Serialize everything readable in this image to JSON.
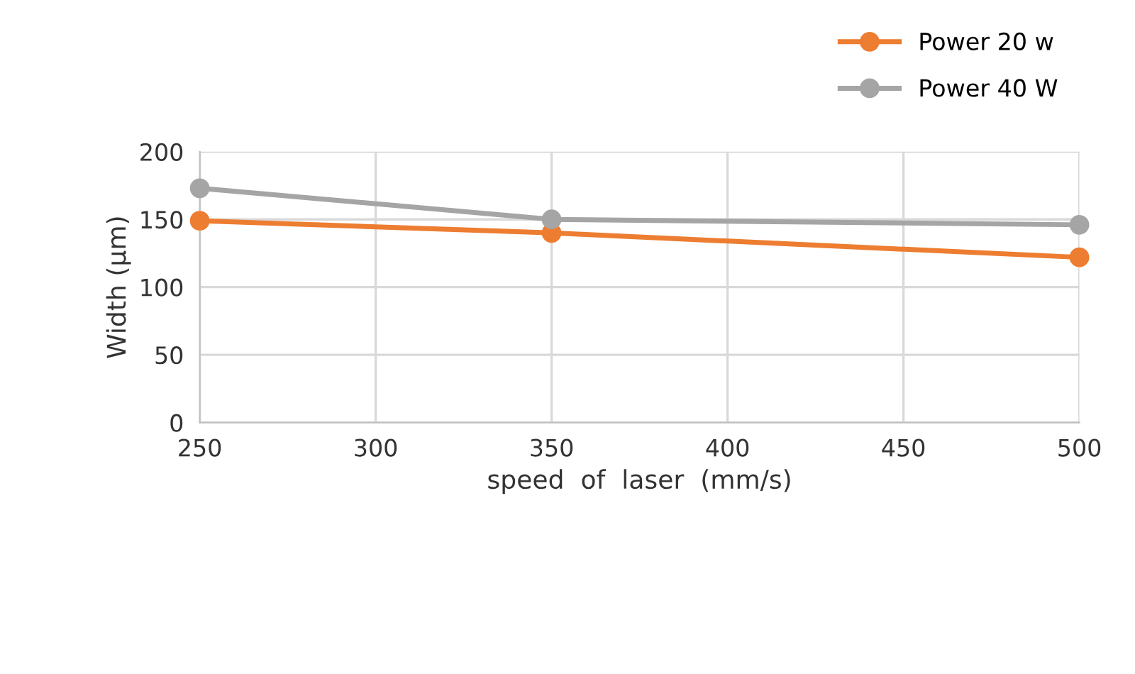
{
  "chart_data": {
    "type": "line",
    "xlabel": "speed  of  laser  (mm/s)",
    "ylabel": "Width (µm)",
    "x": [
      250,
      350,
      500
    ],
    "series": [
      {
        "name": "Power 20 w",
        "color": "#ed7d31",
        "values": [
          149,
          140,
          122
        ]
      },
      {
        "name": "Power 40 W",
        "color": "#a5a5a5",
        "values": [
          173,
          150,
          146
        ]
      }
    ],
    "xlim": [
      250,
      500
    ],
    "xticks": [
      250,
      300,
      350,
      400,
      450,
      500
    ],
    "ylim": [
      0,
      200
    ],
    "yticks": [
      0,
      50,
      100,
      150,
      200
    ],
    "grid": true,
    "legend": "top right",
    "marker": "circle",
    "line_style": "solid"
  }
}
